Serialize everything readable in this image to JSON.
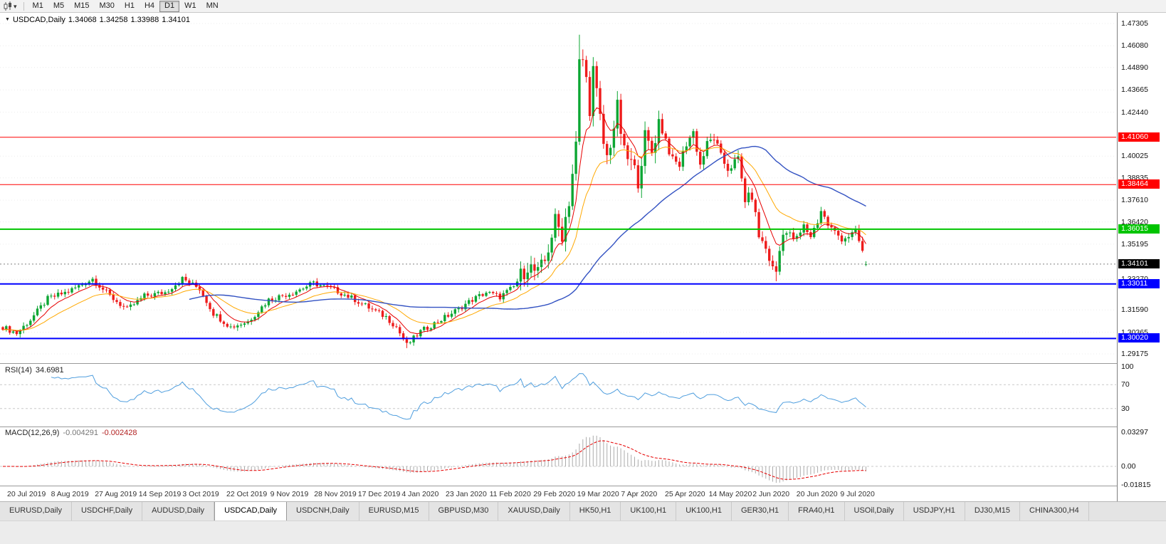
{
  "toolbar": {
    "timeframes": [
      {
        "label": "M1"
      },
      {
        "label": "M5"
      },
      {
        "label": "M15"
      },
      {
        "label": "M30"
      },
      {
        "label": "H1"
      },
      {
        "label": "H4"
      },
      {
        "label": "D1",
        "active": true
      },
      {
        "label": "W1"
      },
      {
        "label": "MN"
      }
    ]
  },
  "chart": {
    "symbol_title": "USDCAD,Daily",
    "ohlc": {
      "open": "1.34068",
      "high": "1.34258",
      "low": "1.33988",
      "close": "1.34101"
    }
  },
  "indicators": {
    "rsi": {
      "label": "RSI(14)",
      "value": "34.6981",
      "period": 14,
      "levels": [
        "100",
        "70",
        "30"
      ],
      "level_lines": [
        70,
        30
      ]
    },
    "macd": {
      "label": "MACD(12,26,9)",
      "value_main": "-0.004291",
      "value_signal": "-0.002428",
      "axis": [
        "0.03297",
        "0.00",
        "-0.01815"
      ]
    }
  },
  "chart_data": {
    "type": "candlestick",
    "symbol": "USDCAD",
    "timeframe": "Daily",
    "bars_total": 251,
    "x_labels": [
      "20 Jul 2019",
      "8 Aug 2019",
      "27 Aug 2019",
      "14 Sep 2019",
      "3 Oct 2019",
      "22 Oct 2019",
      "9 Nov 2019",
      "28 Nov 2019",
      "17 Dec 2019",
      "4 Jan 2020",
      "23 Jan 2020",
      "11 Feb 2020",
      "29 Feb 2020",
      "19 Mar 2020",
      "7 Apr 2020",
      "25 Apr 2020",
      "14 May 2020",
      "2 Jun 2020",
      "20 Jun 2020",
      "9 Jul 2020"
    ],
    "close_waypoints": [
      [
        0,
        1.3065
      ],
      [
        4,
        1.303
      ],
      [
        8,
        1.3105
      ],
      [
        13,
        1.322
      ],
      [
        19,
        1.326
      ],
      [
        26,
        1.333
      ],
      [
        31,
        1.3235
      ],
      [
        36,
        1.316
      ],
      [
        41,
        1.3235
      ],
      [
        47,
        1.3255
      ],
      [
        52,
        1.333
      ],
      [
        57,
        1.3275
      ],
      [
        61,
        1.314
      ],
      [
        66,
        1.3065
      ],
      [
        71,
        1.3095
      ],
      [
        77,
        1.3215
      ],
      [
        84,
        1.3255
      ],
      [
        90,
        1.3305
      ],
      [
        96,
        1.327
      ],
      [
        102,
        1.3215
      ],
      [
        107,
        1.316
      ],
      [
        111,
        1.312
      ],
      [
        114,
        1.3065
      ],
      [
        117,
        1.2965
      ],
      [
        121,
        1.304
      ],
      [
        126,
        1.3095
      ],
      [
        130,
        1.314
      ],
      [
        136,
        1.3215
      ],
      [
        140,
        1.3255
      ],
      [
        144,
        1.323
      ],
      [
        148,
        1.3285
      ],
      [
        152,
        1.3405
      ],
      [
        155,
        1.3355
      ],
      [
        157,
        1.3425
      ],
      [
        160,
        1.3645
      ],
      [
        162,
        1.3575
      ],
      [
        164,
        1.376
      ],
      [
        166,
        1.406
      ],
      [
        167,
        1.451
      ],
      [
        168,
        1.453
      ],
      [
        169,
        1.442
      ],
      [
        170,
        1.427
      ],
      [
        171,
        1.4475
      ],
      [
        172,
        1.434
      ],
      [
        174,
        1.407
      ],
      [
        175,
        1.3995
      ],
      [
        177,
        1.4165
      ],
      [
        178,
        1.4265
      ],
      [
        180,
        1.4015
      ],
      [
        182,
        1.3965
      ],
      [
        184,
        1.3875
      ],
      [
        186,
        1.4105
      ],
      [
        188,
        1.4025
      ],
      [
        190,
        1.4195
      ],
      [
        192,
        1.4095
      ],
      [
        194,
        1.3975
      ],
      [
        196,
        1.3955
      ],
      [
        198,
        1.4075
      ],
      [
        200,
        1.4135
      ],
      [
        202,
        1.3955
      ],
      [
        204,
        1.4065
      ],
      [
        206,
        1.4105
      ],
      [
        208,
        1.3995
      ],
      [
        210,
        1.3935
      ],
      [
        213,
        1.3985
      ],
      [
        215,
        1.3765
      ],
      [
        217,
        1.3785
      ],
      [
        219,
        1.3565
      ],
      [
        221,
        1.3495
      ],
      [
        223,
        1.3385
      ],
      [
        224,
        1.337
      ],
      [
        226,
        1.3595
      ],
      [
        228,
        1.3565
      ],
      [
        230,
        1.3545
      ],
      [
        232,
        1.3615
      ],
      [
        234,
        1.3565
      ],
      [
        236,
        1.3645
      ],
      [
        237,
        1.3705
      ],
      [
        239,
        1.3625
      ],
      [
        241,
        1.3585
      ],
      [
        243,
        1.355
      ],
      [
        245,
        1.3565
      ],
      [
        247,
        1.3585
      ],
      [
        248,
        1.3535
      ],
      [
        249,
        1.348
      ],
      [
        250,
        1.34101
      ]
    ],
    "volatility_segments": [
      {
        "from": 0,
        "to": 149,
        "v": 0.0035
      },
      {
        "from": 150,
        "to": 190,
        "v": 0.011
      },
      {
        "from": 191,
        "to": 232,
        "v": 0.0062
      },
      {
        "from": 233,
        "to": 250,
        "v": 0.0045
      }
    ],
    "high_overrides": {
      "167": 1.4669
    },
    "low_overrides": {
      "117": 1.2949,
      "224": 1.3316
    },
    "last_bar_ohlc": [
      1.34068,
      1.34258,
      1.33988,
      1.34101
    ],
    "price_axis": {
      "min": 1.29175,
      "max": 1.47305,
      "ticks": [
        "1.47305",
        "1.46080",
        "1.44890",
        "1.43665",
        "1.42440",
        "1.40025",
        "1.38835",
        "1.37610",
        "1.36420",
        "1.35195",
        "1.33270",
        "1.31590",
        "1.30365",
        "1.29175"
      ]
    },
    "hlines": [
      {
        "value": 1.4106,
        "label": "1.41060",
        "color": "#ff0000",
        "width": 1
      },
      {
        "value": 1.38464,
        "label": "1.38464",
        "color": "#ff0000",
        "width": 1
      },
      {
        "value": 1.36015,
        "label": "1.36015",
        "color": "#00c400",
        "width": 2
      },
      {
        "value": 1.33011,
        "label": "1.33011",
        "color": "#0000ff",
        "width": 2
      },
      {
        "value": 1.3002,
        "label": "1.30020",
        "color": "#0000ff",
        "width": 2
      }
    ],
    "current_price": {
      "value": 1.34101,
      "label": "1.34101",
      "color": "#000000"
    },
    "moving_averages": [
      {
        "name": "fast",
        "type": "ema",
        "period": 8,
        "color": "#e60000",
        "width": 1
      },
      {
        "name": "medium",
        "type": "ema",
        "period": 21,
        "color": "#ffa800",
        "width": 1
      },
      {
        "name": "slow",
        "type": "sma",
        "period": 55,
        "color": "#3352c2",
        "width": 1.4
      }
    ],
    "candle_up_color": "#0ca633",
    "candle_down_color": "#ee1c1c",
    "rsi_color": "#4f9ede",
    "macd_hist_color": "#ababab",
    "macd_signal_color": "#e60000"
  },
  "tabbar": {
    "active_index": 3,
    "tabs": [
      "EURUSD,Daily",
      "USDCHF,Daily",
      "AUDUSD,Daily",
      "USDCAD,Daily",
      "USDCNH,Daily",
      "EURUSD,M15",
      "GBPUSD,M30",
      "XAUUSD,Daily",
      "HK50,H1",
      "UK100,H1",
      "UK100,H1",
      "GER30,H1",
      "FRA40,H1",
      "USOil,Daily",
      "USDJPY,H1",
      "DJ30,M15",
      "CHINA300,H4"
    ]
  }
}
